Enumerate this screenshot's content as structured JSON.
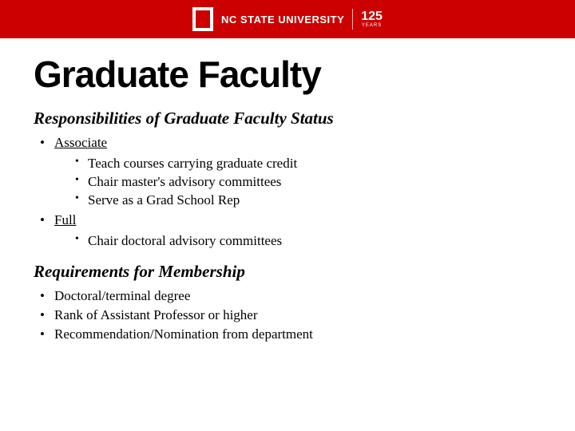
{
  "banner": {
    "university": "NC STATE UNIVERSITY",
    "years_num": "125",
    "years_label": "YEARS",
    "bg_color": "#cc0000",
    "text_color": "#ffffff"
  },
  "title": "Graduate Faculty",
  "section1": {
    "heading": "Responsibilities of Graduate Faculty Status",
    "items": [
      {
        "label": "Associate",
        "sub": [
          "Teach courses carrying graduate credit",
          "Chair master's advisory committees",
          "Serve as a Grad School Rep"
        ]
      },
      {
        "label": "Full",
        "sub": [
          "Chair doctoral advisory committees"
        ]
      }
    ]
  },
  "section2": {
    "heading": "Requirements for Membership",
    "items": [
      "Doctoral/terminal degree",
      "Rank of Assistant Professor or higher",
      "Recommendation/Nomination from department"
    ]
  },
  "colors": {
    "title_color": "#000000",
    "text_color": "#000000",
    "background": "#ffffff"
  },
  "typography": {
    "title_fontsize": 46,
    "heading_fontsize": 21,
    "body_fontsize": 17
  }
}
